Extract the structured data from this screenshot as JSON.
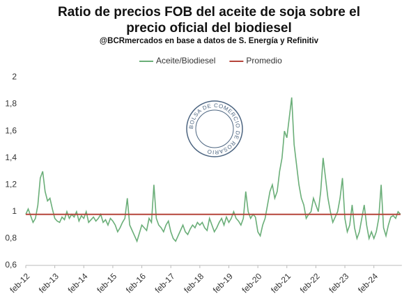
{
  "chart_data": {
    "type": "line",
    "title": "Ratio de precios FOB  del aceite de soja sobre el precio oficial del biodiesel",
    "subtitle": "@BCRmercados en base a datos de S. Energía y Refinitiv",
    "watermark": "BOLSA DE COMERCIO DE ROSARIO",
    "categories": [
      "feb-12",
      null,
      null,
      null,
      null,
      null,
      null,
      null,
      null,
      null,
      null,
      null,
      "feb-13",
      null,
      null,
      null,
      null,
      null,
      null,
      null,
      null,
      null,
      null,
      null,
      "feb-14",
      null,
      null,
      null,
      null,
      null,
      null,
      null,
      null,
      null,
      null,
      null,
      "feb-15",
      null,
      null,
      null,
      null,
      null,
      null,
      null,
      null,
      null,
      null,
      null,
      "feb-16",
      null,
      null,
      null,
      null,
      null,
      null,
      null,
      null,
      null,
      null,
      null,
      "feb-17",
      null,
      null,
      null,
      null,
      null,
      null,
      null,
      null,
      null,
      null,
      null,
      "feb-18",
      null,
      null,
      null,
      null,
      null,
      null,
      null,
      null,
      null,
      null,
      null,
      "feb-19",
      null,
      null,
      null,
      null,
      null,
      null,
      null,
      null,
      null,
      null,
      null,
      "feb-20",
      null,
      null,
      null,
      null,
      null,
      null,
      null,
      null,
      null,
      null,
      null,
      "feb-21",
      null,
      null,
      null,
      null,
      null,
      null,
      null,
      null,
      null,
      null,
      null,
      "feb-22",
      null,
      null,
      null,
      null,
      null,
      null,
      null,
      null,
      null,
      null,
      null,
      "feb-23",
      null,
      null,
      null,
      null,
      null,
      null,
      null,
      null,
      null,
      null,
      null,
      "feb-24",
      null,
      null,
      null,
      null,
      null,
      null,
      null,
      null,
      null,
      null,
      null
    ],
    "series": [
      {
        "name": "Aceite/Biodiesel",
        "color": "#6aae78",
        "values": [
          0.98,
          1.02,
          0.97,
          0.92,
          0.95,
          1.05,
          1.25,
          1.3,
          1.15,
          1.08,
          1.1,
          1.02,
          0.95,
          0.93,
          0.92,
          0.96,
          0.94,
          1.0,
          0.95,
          0.98,
          0.96,
          1.0,
          0.93,
          0.97,
          0.95,
          1.0,
          0.92,
          0.94,
          0.96,
          0.93,
          0.95,
          0.98,
          0.92,
          0.94,
          0.9,
          0.95,
          0.93,
          0.9,
          0.85,
          0.88,
          0.92,
          0.95,
          1.1,
          0.9,
          0.86,
          0.82,
          0.78,
          0.84,
          0.9,
          0.88,
          0.86,
          0.95,
          0.92,
          1.2,
          0.95,
          0.9,
          0.88,
          0.85,
          0.9,
          0.93,
          0.85,
          0.8,
          0.78,
          0.82,
          0.86,
          0.9,
          0.85,
          0.83,
          0.87,
          0.9,
          0.88,
          0.92,
          0.9,
          0.92,
          0.88,
          0.86,
          0.95,
          0.9,
          0.85,
          0.88,
          0.92,
          0.95,
          0.9,
          0.96,
          0.92,
          0.95,
          1.0,
          0.95,
          0.93,
          0.9,
          0.95,
          1.15,
          1.0,
          0.95,
          0.98,
          0.96,
          0.85,
          0.82,
          0.9,
          0.95,
          1.05,
          1.15,
          1.2,
          1.1,
          1.15,
          1.3,
          1.4,
          1.6,
          1.55,
          1.7,
          1.85,
          1.5,
          1.35,
          1.2,
          1.1,
          1.05,
          0.95,
          0.98,
          1.0,
          1.1,
          1.05,
          1.0,
          1.15,
          1.4,
          1.25,
          1.1,
          1.0,
          0.92,
          0.96,
          1.0,
          1.1,
          1.25,
          0.95,
          0.85,
          0.9,
          1.05,
          0.88,
          0.8,
          0.85,
          0.95,
          1.05,
          0.9,
          0.8,
          0.85,
          0.8,
          0.85,
          0.95,
          1.2,
          0.88,
          0.82,
          0.9,
          0.96,
          0.97,
          0.95,
          1.0,
          0.98
        ]
      },
      {
        "name": "Promedio",
        "color": "#b5443a",
        "values": [
          0.98,
          0.98,
          0.98,
          0.98,
          0.98,
          0.98,
          0.98,
          0.98,
          0.98,
          0.98,
          0.98,
          0.98,
          0.98,
          0.98,
          0.98,
          0.98,
          0.98,
          0.98,
          0.98,
          0.98,
          0.98,
          0.98,
          0.98,
          0.98,
          0.98,
          0.98,
          0.98,
          0.98,
          0.98,
          0.98,
          0.98,
          0.98,
          0.98,
          0.98,
          0.98,
          0.98,
          0.98,
          0.98,
          0.98,
          0.98,
          0.98,
          0.98,
          0.98,
          0.98,
          0.98,
          0.98,
          0.98,
          0.98,
          0.98,
          0.98,
          0.98,
          0.98,
          0.98,
          0.98,
          0.98,
          0.98,
          0.98,
          0.98,
          0.98,
          0.98,
          0.98,
          0.98,
          0.98,
          0.98,
          0.98,
          0.98,
          0.98,
          0.98,
          0.98,
          0.98,
          0.98,
          0.98,
          0.98,
          0.98,
          0.98,
          0.98,
          0.98,
          0.98,
          0.98,
          0.98,
          0.98,
          0.98,
          0.98,
          0.98,
          0.98,
          0.98,
          0.98,
          0.98,
          0.98,
          0.98,
          0.98,
          0.98,
          0.98,
          0.98,
          0.98,
          0.98,
          0.98,
          0.98,
          0.98,
          0.98,
          0.98,
          0.98,
          0.98,
          0.98,
          0.98,
          0.98,
          0.98,
          0.98,
          0.98,
          0.98,
          0.98,
          0.98,
          0.98,
          0.98,
          0.98,
          0.98,
          0.98,
          0.98,
          0.98,
          0.98,
          0.98,
          0.98,
          0.98,
          0.98,
          0.98,
          0.98,
          0.98,
          0.98,
          0.98,
          0.98,
          0.98,
          0.98,
          0.98,
          0.98,
          0.98,
          0.98,
          0.98,
          0.98,
          0.98,
          0.98,
          0.98,
          0.98,
          0.98,
          0.98,
          0.98,
          0.98,
          0.98,
          0.98,
          0.98,
          0.98,
          0.98,
          0.98,
          0.98,
          0.98,
          0.98,
          0.98
        ]
      }
    ],
    "ylim": [
      0.6,
      2
    ],
    "yticks": [
      {
        "value": 0.6,
        "label": "0,6"
      },
      {
        "value": 0.8,
        "label": "0,8"
      },
      1,
      {
        "value": 1.2,
        "label": "1,2"
      },
      {
        "value": 1.4,
        "label": "1,4"
      },
      {
        "value": 1.6,
        "label": "1,6"
      },
      {
        "value": 1.8,
        "label": "1,8"
      },
      2
    ],
    "grid": false,
    "legend": "top"
  }
}
